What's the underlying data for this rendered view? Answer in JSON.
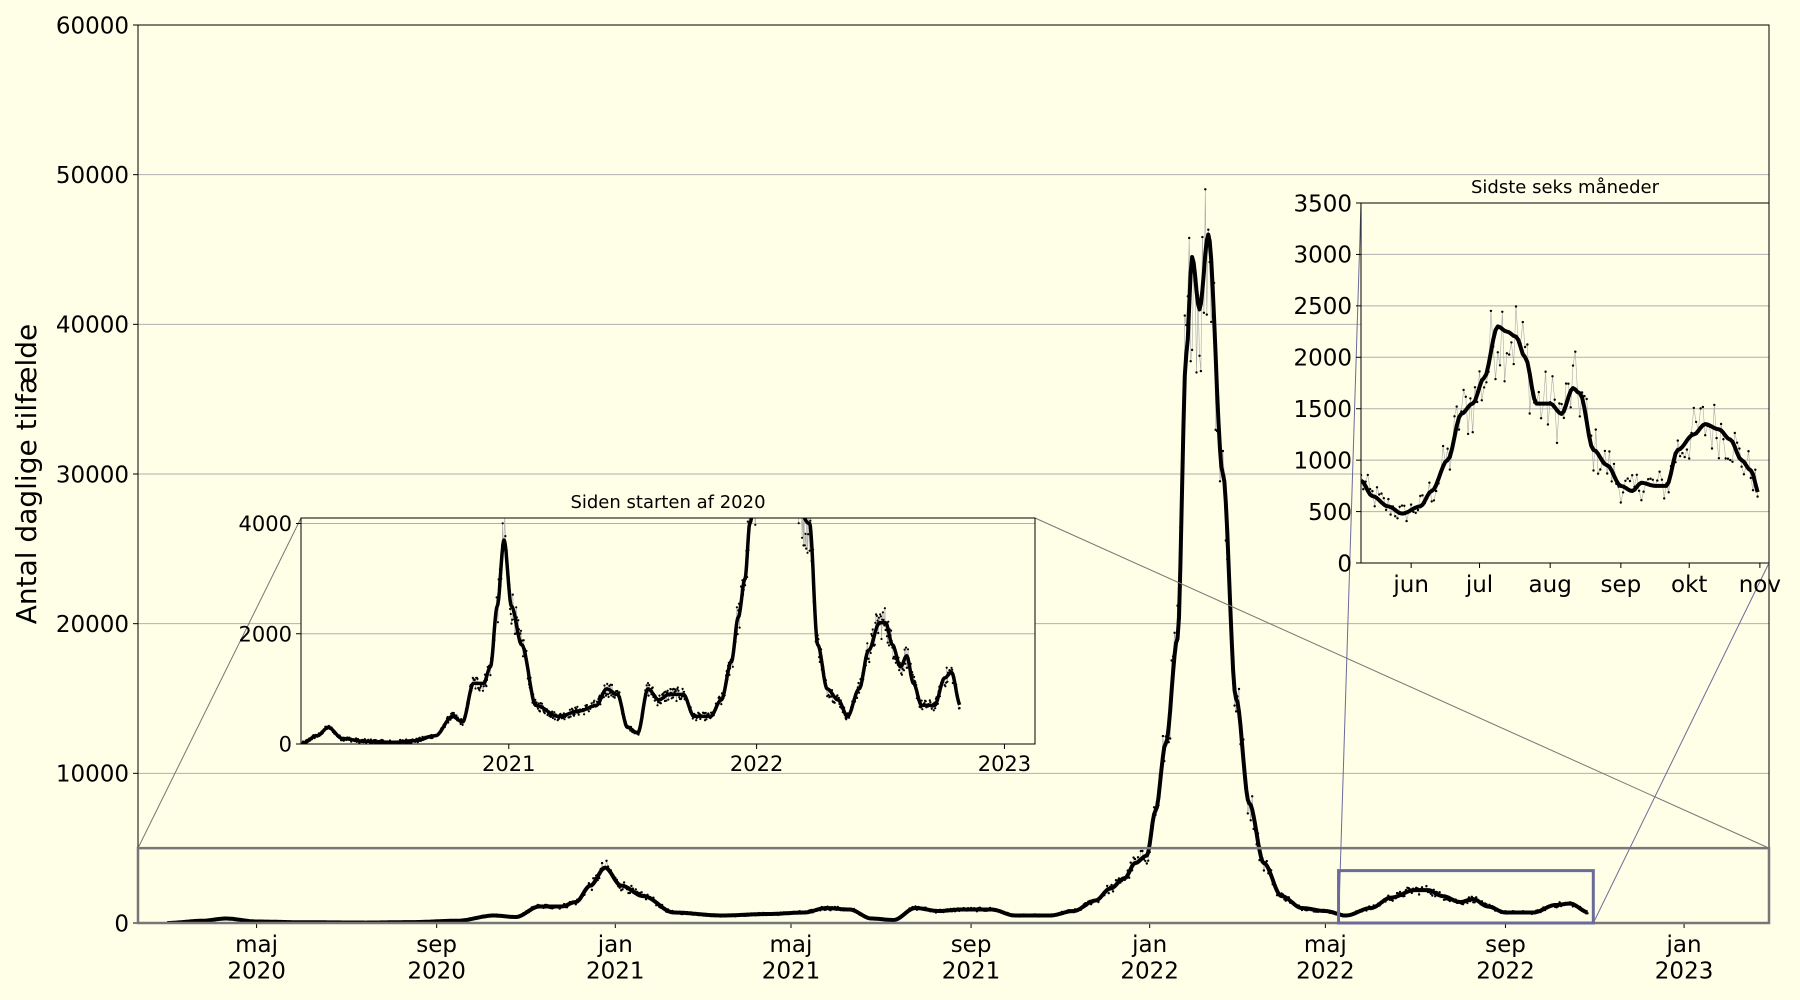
{
  "chart_data": [
    {
      "type": "line",
      "ylabel": "Antal daglige tilfælde",
      "ylim": [
        0,
        60000
      ],
      "y_ticks": [
        "0",
        "10000",
        "20000",
        "30000",
        "40000",
        "50000",
        "60000"
      ],
      "x_ticks": [
        {
          "month": "maj",
          "year": "2020"
        },
        {
          "month": "sep",
          "year": "2020"
        },
        {
          "month": "jan",
          "year": "2021"
        },
        {
          "month": "maj",
          "year": "2021"
        },
        {
          "month": "sep",
          "year": "2021"
        },
        {
          "month": "jan",
          "year": "2022"
        },
        {
          "month": "maj",
          "year": "2022"
        },
        {
          "month": "sep",
          "year": "2022"
        },
        {
          "month": "jan",
          "year": "2023"
        }
      ],
      "grid": true,
      "series": [
        {
          "x": [
            "2020-03-01",
            "2020-03-25",
            "2020-04-10",
            "2020-05-01",
            "2020-06-01",
            "2020-07-15",
            "2020-08-15",
            "2020-09-15",
            "2020-10-10",
            "2020-10-25",
            "2020-11-10",
            "2020-11-25",
            "2020-12-05",
            "2020-12-15",
            "2020-12-25",
            "2021-01-05",
            "2021-01-20",
            "2021-02-10",
            "2021-03-15",
            "2021-04-15",
            "2021-05-10",
            "2021-05-25",
            "2021-06-10",
            "2021-06-25",
            "2021-07-10",
            "2021-07-25",
            "2021-08-10",
            "2021-08-25",
            "2021-09-15",
            "2021-10-01",
            "2021-10-25",
            "2021-11-10",
            "2021-11-25",
            "2021-12-05",
            "2021-12-15",
            "2021-12-22",
            "2021-12-30",
            "2022-01-05",
            "2022-01-12",
            "2022-01-20",
            "2022-01-26",
            "2022-01-30",
            "2022-02-04",
            "2022-02-10",
            "2022-02-20",
            "2022-03-01",
            "2022-03-10",
            "2022-03-20",
            "2022-04-01",
            "2022-04-15",
            "2022-05-01",
            "2022-05-15",
            "2022-06-01",
            "2022-06-15",
            "2022-07-01",
            "2022-07-10",
            "2022-07-20",
            "2022-08-01",
            "2022-08-10",
            "2022-08-20",
            "2022-09-01",
            "2022-09-20",
            "2022-10-05",
            "2022-10-15",
            "2022-10-28"
          ],
          "y": [
            0,
            150,
            300,
            100,
            50,
            30,
            60,
            150,
            500,
            400,
            1100,
            1100,
            1400,
            2500,
            3700,
            2500,
            1800,
            700,
            500,
            600,
            700,
            1000,
            900,
            300,
            200,
            1000,
            800,
            900,
            900,
            500,
            500,
            800,
            1500,
            2300,
            3000,
            4000,
            4500,
            7500,
            12000,
            19000,
            38000,
            44500,
            41000,
            46000,
            30000,
            15000,
            8000,
            4000,
            1800,
            1000,
            800,
            500,
            1000,
            1700,
            2200,
            2200,
            1800,
            1400,
            1600,
            1100,
            700,
            700,
            1200,
            1300,
            700
          ]
        }
      ]
    },
    {
      "type": "line",
      "title": "Siden starten af 2020",
      "ylim": [
        0,
        4100
      ],
      "y_ticks": [
        "0",
        "2000",
        "4000"
      ],
      "x_ticks": [
        "2021",
        "2022",
        "2023"
      ],
      "grid": true,
      "series": [
        {
          "x": [
            "2020-03-01",
            "2020-03-25",
            "2020-04-10",
            "2020-05-01",
            "2020-06-01",
            "2020-07-15",
            "2020-08-15",
            "2020-09-15",
            "2020-10-10",
            "2020-10-25",
            "2020-11-10",
            "2020-11-25",
            "2020-12-05",
            "2020-12-15",
            "2020-12-25",
            "2021-01-05",
            "2021-01-20",
            "2021-02-10",
            "2021-03-15",
            "2021-04-15",
            "2021-05-10",
            "2021-05-25",
            "2021-06-10",
            "2021-06-25",
            "2021-07-10",
            "2021-07-25",
            "2021-08-10",
            "2021-08-25",
            "2021-09-15",
            "2021-10-01",
            "2021-10-25",
            "2021-11-10",
            "2021-11-25",
            "2021-12-05",
            "2021-12-15",
            "2021-12-22",
            "2021-12-30",
            "2022-01-05",
            "2022-03-20",
            "2022-04-01",
            "2022-04-15",
            "2022-05-01",
            "2022-05-15",
            "2022-06-01",
            "2022-06-15",
            "2022-07-01",
            "2022-07-10",
            "2022-07-20",
            "2022-08-01",
            "2022-08-10",
            "2022-08-20",
            "2022-09-01",
            "2022-09-20",
            "2022-10-05",
            "2022-10-15",
            "2022-10-28"
          ],
          "y": [
            0,
            150,
            300,
            100,
            50,
            30,
            60,
            150,
            500,
            400,
            1100,
            1100,
            1400,
            2500,
            3700,
            2500,
            1800,
            700,
            500,
            600,
            700,
            1000,
            900,
            300,
            200,
            1000,
            800,
            900,
            900,
            500,
            500,
            800,
            1500,
            2300,
            3000,
            4000,
            4500,
            7500,
            4000,
            1800,
            1000,
            800,
            500,
            1000,
            1700,
            2200,
            2200,
            1800,
            1400,
            1600,
            1100,
            700,
            700,
            1200,
            1300,
            700
          ]
        }
      ]
    },
    {
      "type": "line",
      "title": "Sidste seks måneder",
      "ylim": [
        0,
        3500
      ],
      "y_ticks": [
        "0",
        "500",
        "1000",
        "1500",
        "2000",
        "2500",
        "3000",
        "3500"
      ],
      "x_ticks": [
        "jun",
        "jul",
        "aug",
        "sep",
        "okt",
        "nov"
      ],
      "grid": true,
      "series": [
        {
          "x": [
            "2022-05-10",
            "2022-05-15",
            "2022-05-22",
            "2022-05-28",
            "2022-06-05",
            "2022-06-10",
            "2022-06-17",
            "2022-06-23",
            "2022-06-28",
            "2022-07-03",
            "2022-07-09",
            "2022-07-13",
            "2022-07-17",
            "2022-07-21",
            "2022-07-26",
            "2022-08-01",
            "2022-08-06",
            "2022-08-11",
            "2022-08-14",
            "2022-08-20",
            "2022-08-26",
            "2022-09-01",
            "2022-09-06",
            "2022-09-10",
            "2022-09-16",
            "2022-09-21",
            "2022-09-26",
            "2022-10-03",
            "2022-10-08",
            "2022-10-14",
            "2022-10-19",
            "2022-10-24",
            "2022-10-28",
            "2022-11-01"
          ],
          "y": [
            800,
            650,
            550,
            480,
            550,
            700,
            1000,
            1450,
            1550,
            1800,
            2300,
            2250,
            2200,
            2000,
            1550,
            1550,
            1450,
            1700,
            1650,
            1100,
            950,
            750,
            700,
            780,
            750,
            750,
            1100,
            1250,
            1350,
            1300,
            1200,
            1000,
            900,
            650
          ]
        }
      ]
    }
  ]
}
